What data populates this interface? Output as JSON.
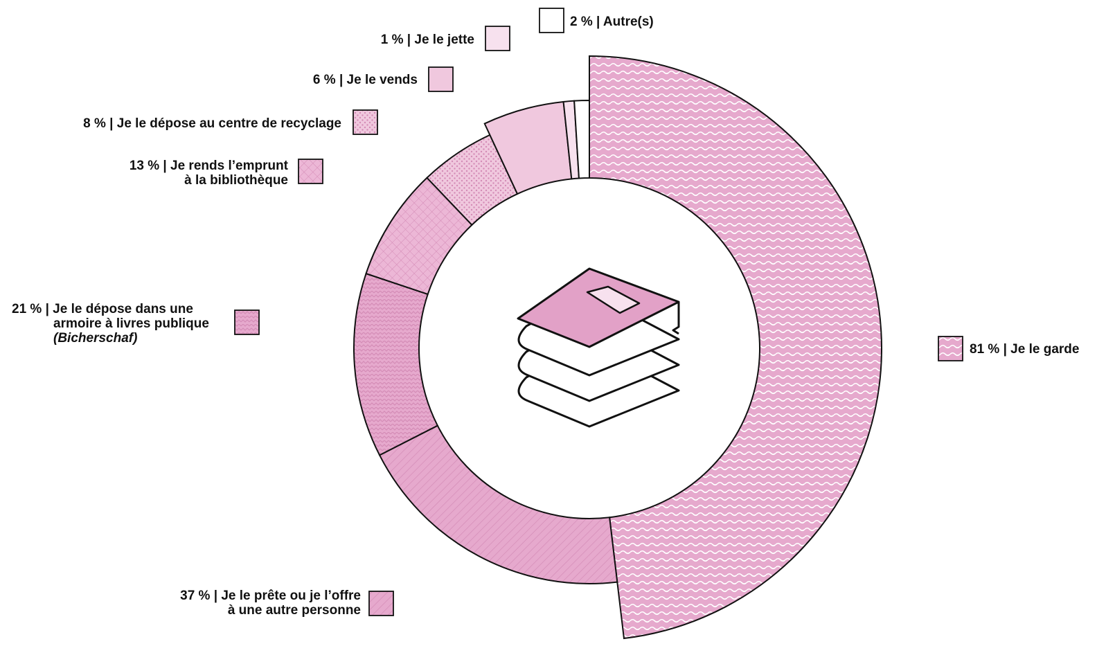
{
  "chart_data": {
    "type": "donut",
    "title": "",
    "colors": {
      "pink_main": "#e6a9cd",
      "pink_light": "#f0c8de",
      "pink_very_light": "#f7e1ee",
      "pattern_dark": "#d48bb6",
      "book_cover": "#e2a1c7",
      "stroke": "#111111"
    },
    "center_icon": "stack-of-books-icon",
    "categories": [
      {
        "key": "garde",
        "value": 81,
        "label": "81 % | Je le garde",
        "label_lines": [
          "81 % | Je le garde"
        ],
        "pattern": "waves",
        "placement": "right"
      },
      {
        "key": "prete",
        "value": 37,
        "label": "37 % | Je le prête ou je l’offre à une autre personne",
        "label_lines": [
          "37 % | Je le prête ou je l’offre",
          "à une autre personne"
        ],
        "pattern": "diagonal-lines",
        "placement": "bottom-left"
      },
      {
        "key": "armoire",
        "value": 21,
        "label": "21 % | Je le dépose dans une armoire à livres publique (Bicherschaf)",
        "label_lines": [
          "21 % | Je le dépose dans une",
          "armoire à livres publique",
          "(Bicherschaf)"
        ],
        "pattern": "zigzag",
        "placement": "left"
      },
      {
        "key": "bibliotheque",
        "value": 13,
        "label": "13 % | Je rends l’emprunt à la bibliothèque",
        "label_lines": [
          "13 % | Je rends l’emprunt",
          "à la bibliothèque"
        ],
        "pattern": "crosshatch",
        "placement": "upper-left"
      },
      {
        "key": "recyclage",
        "value": 8,
        "label": "8 % | Je le dépose au centre de recyclage",
        "label_lines": [
          "8 % | Je le dépose au centre de recyclage"
        ],
        "pattern": "dots",
        "placement": "upper-left"
      },
      {
        "key": "vends",
        "value": 6,
        "label": "6 % | Je le vends",
        "label_lines": [
          "6 % | Je le vends"
        ],
        "pattern": "solid-light",
        "placement": "top"
      },
      {
        "key": "jette",
        "value": 1,
        "label": "1 % | Je le jette",
        "label_lines": [
          "1 % | Je le jette"
        ],
        "pattern": "solid-very-light",
        "placement": "top"
      },
      {
        "key": "autres",
        "value": 2,
        "label": "2 % | Autre(s)",
        "label_lines": [
          "2 % | Autre(s)"
        ],
        "pattern": "white",
        "placement": "top"
      }
    ],
    "legend_placement": "around the chart, next to each segment"
  }
}
